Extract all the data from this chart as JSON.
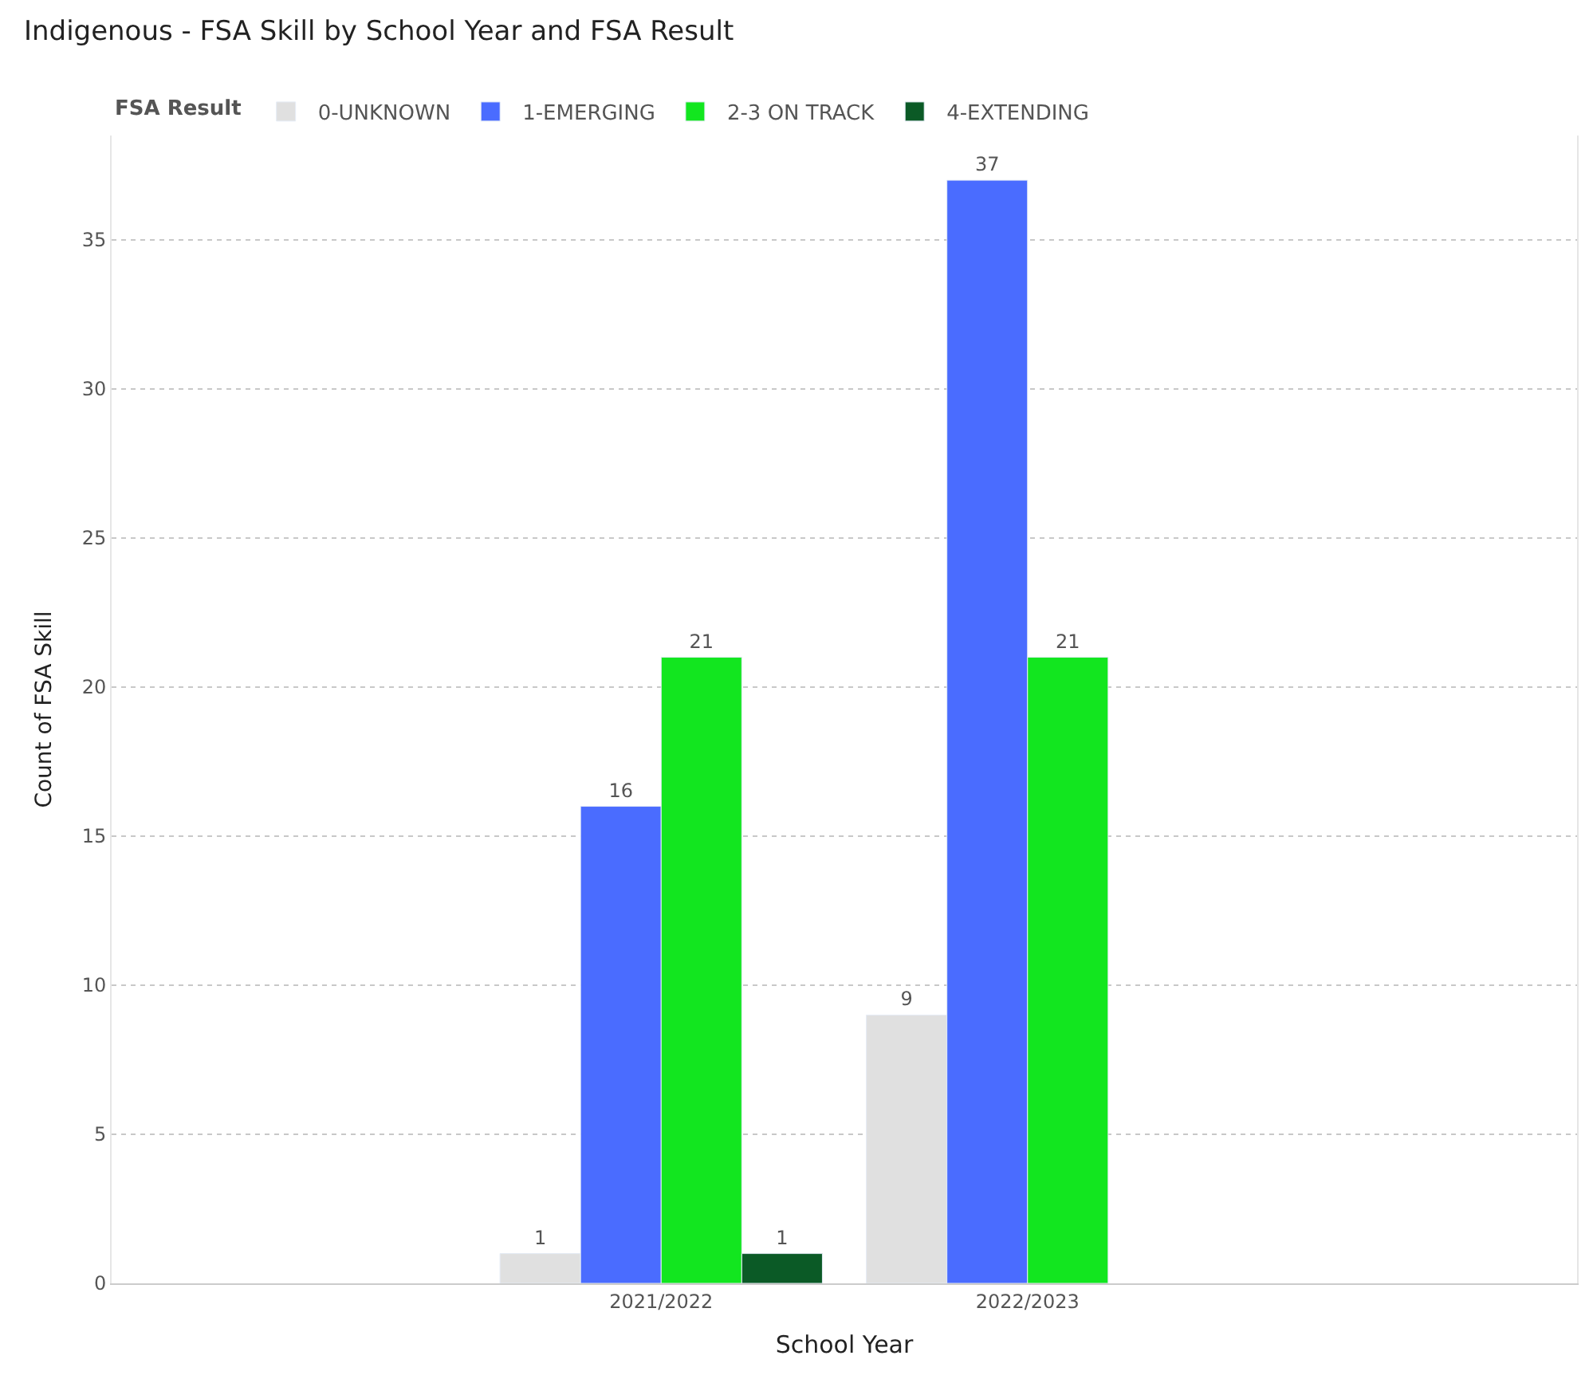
{
  "chart_data": {
    "type": "bar",
    "title": "Indigenous - FSA Skill by School Year and FSA Result",
    "xlabel": "School Year",
    "ylabel": "Count of FSA Skill",
    "legend_title": "FSA Result",
    "categories": [
      null,
      "2021/2022",
      "2022/2023",
      null
    ],
    "series": [
      {
        "name": "0-UNKNOWN",
        "color": "#e0e0e0",
        "values": [
          null,
          1,
          9,
          null
        ]
      },
      {
        "name": "1-EMERGING",
        "color": "#4a6cff",
        "values": [
          null,
          16,
          37,
          null
        ]
      },
      {
        "name": "2-3 ON TRACK",
        "color": "#12e61f",
        "values": [
          null,
          21,
          21,
          null
        ]
      },
      {
        "name": "4-EXTENDING",
        "color": "#0b5a26",
        "values": [
          null,
          1,
          null,
          null
        ]
      }
    ],
    "ylim": [
      0,
      38.5
    ],
    "yticks": [
      0,
      5,
      10,
      15,
      20,
      25,
      30,
      35
    ],
    "grid": "y",
    "legend": "top left",
    "data_labels": true
  }
}
